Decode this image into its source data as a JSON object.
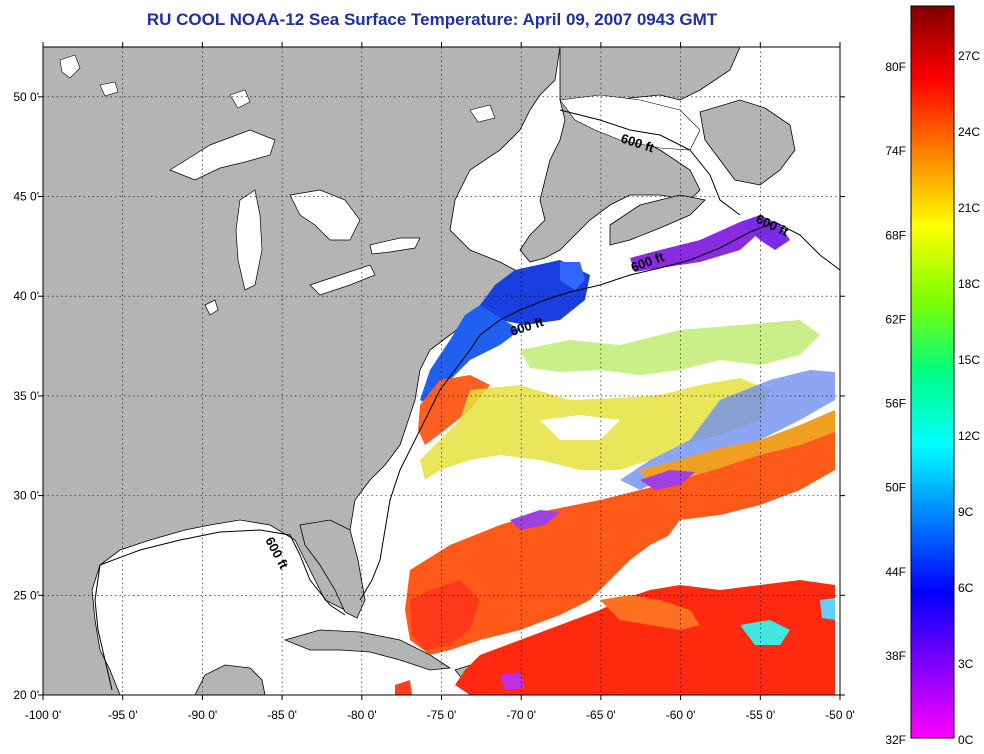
{
  "title": "RU COOL  NOAA-12  Sea Surface Temperature:  April 09, 2007 0943 GMT",
  "map": {
    "lon_range": [
      -100,
      -50
    ],
    "lat_range": [
      20,
      52.5
    ],
    "lon_ticks": [
      "-100 0'",
      "-95 0'",
      "-90 0'",
      "-85 0'",
      "-80 0'",
      "-75 0'",
      "-70 0'",
      "-65 0'",
      "-60 0'",
      "-55 0'",
      "-50 0'"
    ],
    "lat_ticks": [
      "20 0'",
      "25 0'",
      "30 0'",
      "35 0'",
      "40 0'",
      "45 0'",
      "50 0'"
    ],
    "contour_labels": [
      "600 ft",
      "600 ft",
      "600 ft",
      "600 ft",
      "600 ft"
    ],
    "land_color": "#b4b4b4",
    "cloud_color": "#ffffff"
  },
  "colorbar": {
    "fahrenheit_labels": [
      "80F",
      "74F",
      "68F",
      "62F",
      "56F",
      "50F",
      "44F",
      "38F",
      "32F"
    ],
    "celsius_labels": [
      "27C",
      "24C",
      "21C",
      "18C",
      "15C",
      "12C",
      "9C",
      "6C",
      "3C",
      "0C"
    ],
    "colors": [
      "#800000",
      "#ff0000",
      "#ff8000",
      "#ffff00",
      "#80ff00",
      "#00ff80",
      "#00ffff",
      "#0080ff",
      "#0000ff",
      "#8000ff",
      "#ff00ff"
    ]
  }
}
